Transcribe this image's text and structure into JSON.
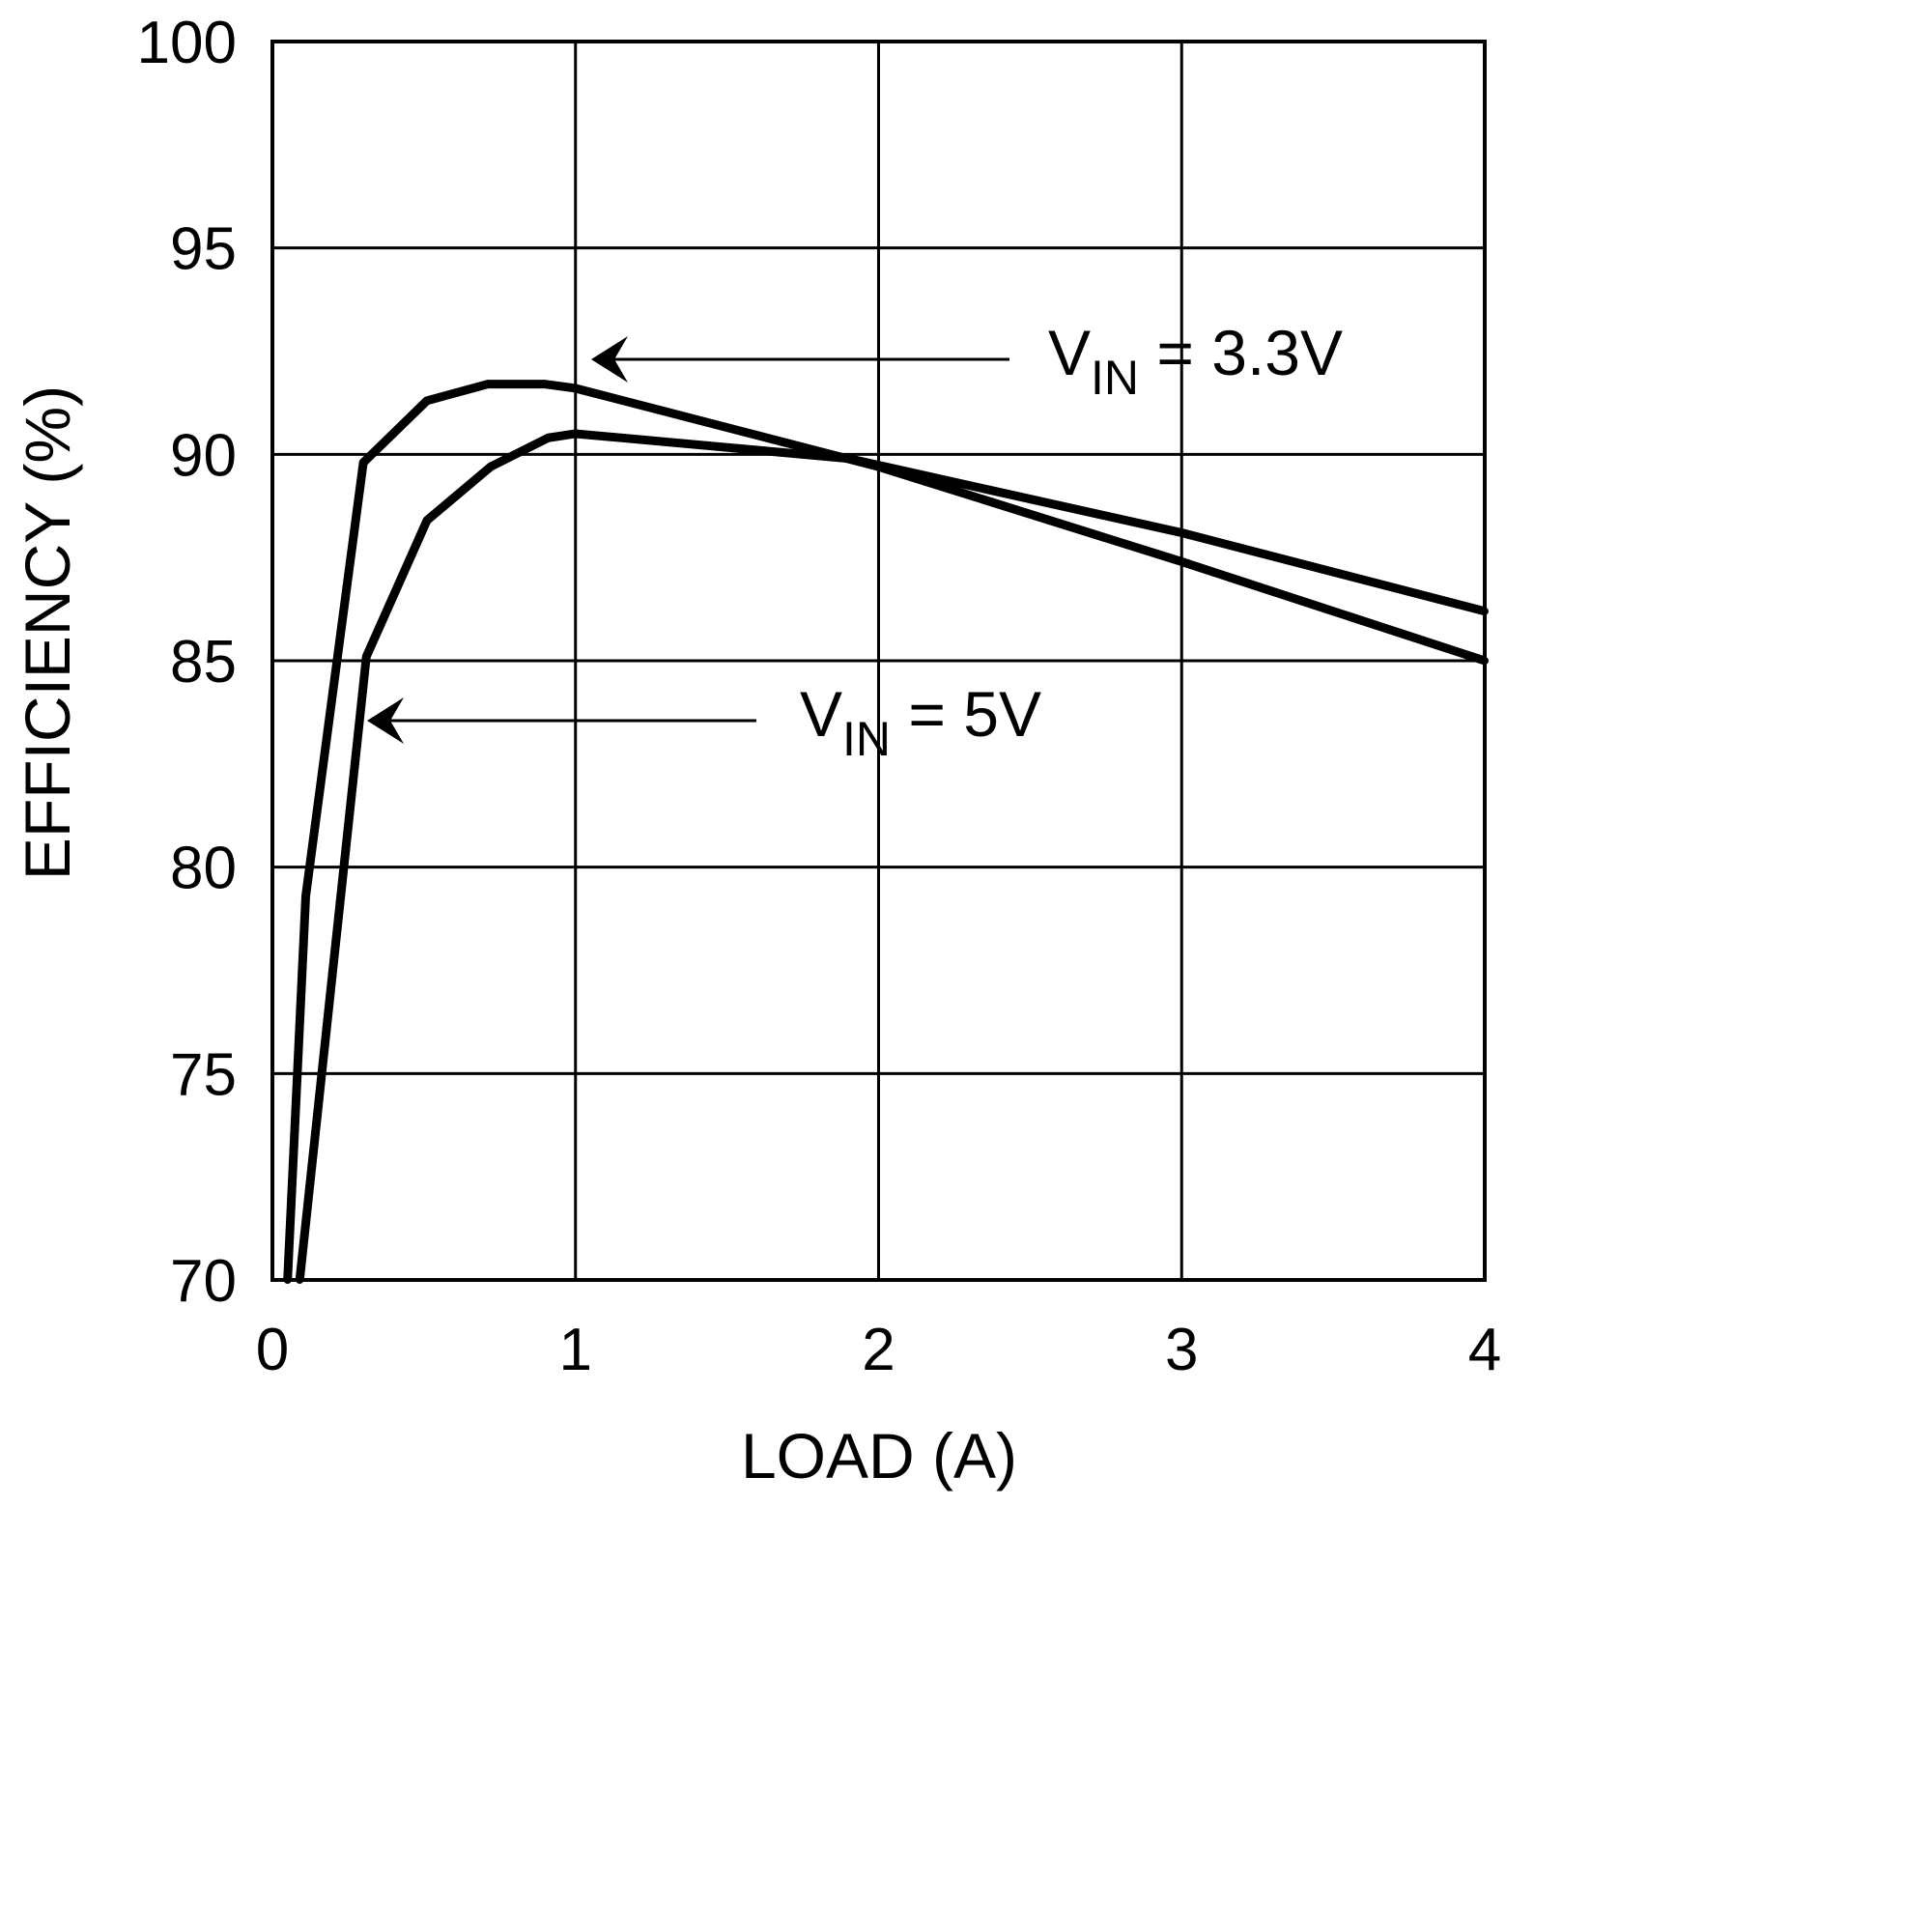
{
  "chart_data": {
    "type": "line",
    "title": "",
    "xlabel": "LOAD (A)",
    "ylabel": "EFFICIENCY (%)",
    "xlim": [
      0,
      4
    ],
    "ylim": [
      70,
      100
    ],
    "xticks": [
      "0",
      "1",
      "2",
      "3",
      "4"
    ],
    "yticks": [
      "70",
      "75",
      "80",
      "85",
      "90",
      "95",
      "100"
    ],
    "grid": true,
    "line_color": "#000000",
    "series": [
      {
        "name": "VIN = 3.3V",
        "label_main": "V",
        "label_sub": "IN",
        "label_rest": " = 3.3V",
        "x": [
          0.05,
          0.11,
          0.3,
          0.51,
          0.71,
          0.9,
          1.0,
          2.0,
          3.0,
          4.0
        ],
        "y": [
          70.0,
          79.3,
          89.8,
          91.3,
          91.7,
          91.7,
          91.6,
          89.7,
          87.4,
          85.0
        ]
      },
      {
        "name": "VIN = 5V",
        "label_main": "V",
        "label_sub": "IN",
        "label_rest": " = 5V",
        "x": [
          0.09,
          0.31,
          0.51,
          0.72,
          0.91,
          1.0,
          1.9,
          3.0,
          4.0
        ],
        "y": [
          70.0,
          85.1,
          88.4,
          89.7,
          90.4,
          90.5,
          89.9,
          88.1,
          86.2
        ]
      }
    ]
  }
}
